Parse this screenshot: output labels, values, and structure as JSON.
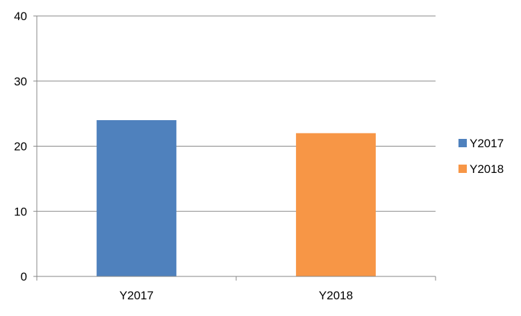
{
  "chart_data": {
    "type": "bar",
    "title": "",
    "xlabel": "",
    "ylabel": "",
    "categories": [
      "Y2017",
      "Y2018"
    ],
    "values": [
      24,
      22
    ],
    "bar_colors": [
      "#4f81bd",
      "#f79646"
    ],
    "ylim": [
      0,
      40
    ],
    "yticks": [
      0,
      10,
      20,
      30,
      40
    ],
    "grid": true,
    "legend": {
      "position": "right",
      "entries": [
        {
          "label": "Y2017",
          "color": "#4f81bd"
        },
        {
          "label": "Y2018",
          "color": "#f79646"
        }
      ]
    },
    "gridline_color": "#868686",
    "axis_color": "#868686"
  }
}
